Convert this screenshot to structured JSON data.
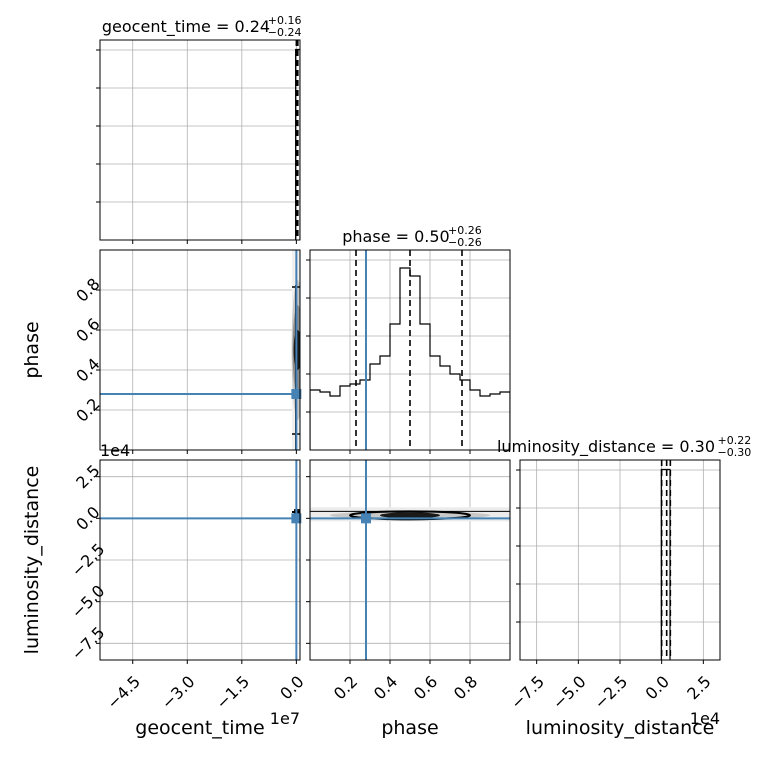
{
  "chart_data": {
    "type": "corner",
    "parameters": [
      "geocent_time",
      "phase",
      "luminosity_distance"
    ],
    "marker_color": "#4682b4",
    "truths": {
      "geocent_time": 0.0,
      "phase": 0.28,
      "luminosity_distance": 0.0
    },
    "titles": [
      {
        "param": "geocent_time",
        "text": "geocent_time = 0.24",
        "sup": "+0.16",
        "sub": "−0.24"
      },
      {
        "param": "phase",
        "text": "phase = 0.50",
        "sup": "+0.26",
        "sub": "−0.26"
      },
      {
        "param": "luminosity_distance",
        "text": "luminosity_distance = 0.30",
        "sup": "+0.22",
        "sub": "−0.30"
      }
    ],
    "axes": {
      "geocent_time": {
        "range": [
          -54000000,
          1000000
        ],
        "ticks": [
          -45000000,
          -30000000,
          -15000000,
          0
        ],
        "tick_labels": [
          "−4.5",
          "−3.0",
          "−1.5",
          "0.0"
        ],
        "offset_label": "1e7"
      },
      "phase": {
        "range": [
          0.0,
          1.0
        ],
        "ticks": [
          0.2,
          0.4,
          0.6,
          0.8
        ],
        "tick_labels": [
          "0.2",
          "0.4",
          "0.6",
          "0.8"
        ]
      },
      "luminosity_distance": {
        "range": [
          -85000,
          35000
        ],
        "ticks": [
          -75000,
          -50000,
          -25000,
          0,
          25000
        ],
        "tick_labels": [
          "−7.5",
          "−5.0",
          "−2.5",
          "0.0",
          "2.5"
        ],
        "offset_label": "1e4"
      }
    },
    "quantiles": {
      "geocent_time": [
        0.0,
        240000,
        400000
      ],
      "phase": [
        0.23,
        0.5,
        0.76
      ],
      "luminosity_distance": [
        0.0,
        3000,
        5200
      ]
    },
    "histograms": {
      "geocent_time": {
        "edges": [
          -200000,
          420000,
          1000000
        ],
        "counts": [
          1.0,
          1.0
        ],
        "ymax": 1.05
      },
      "phase": {
        "edges": [
          0.0,
          0.05,
          0.1,
          0.15,
          0.2,
          0.25,
          0.3,
          0.35,
          0.4,
          0.45,
          0.5,
          0.55,
          0.6,
          0.65,
          0.7,
          0.75,
          0.8,
          0.85,
          0.9,
          0.95,
          1.0
        ],
        "counts": [
          0.3,
          0.29,
          0.27,
          0.32,
          0.33,
          0.35,
          0.43,
          0.47,
          0.63,
          0.91,
          0.87,
          0.63,
          0.47,
          0.42,
          0.38,
          0.35,
          0.3,
          0.27,
          0.28,
          0.29
        ],
        "ymax": 1.0
      },
      "luminosity_distance": {
        "edges": [
          -200,
          1000,
          5000
        ],
        "counts": [
          1.0,
          1.0
        ],
        "ymax": 1.05
      }
    },
    "xlabel_bottom": [
      "geocent_time",
      "phase",
      "luminosity_distance"
    ],
    "ylabel_left": [
      "",
      "phase",
      "luminosity_distance"
    ],
    "grid": true
  }
}
